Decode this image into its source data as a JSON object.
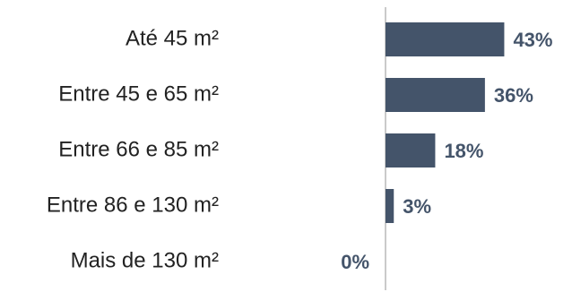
{
  "chart_data": {
    "type": "bar",
    "orientation": "horizontal",
    "categories": [
      "Até 45 m²",
      "Entre 45 e 65 m²",
      "Entre 66 e 85 m²",
      "Entre 86 e 130 m²",
      "Mais de 130 m²"
    ],
    "values": [
      43,
      36,
      18,
      3,
      0
    ],
    "data_labels": [
      "43%",
      "36%",
      "18%",
      "3%",
      "0%"
    ],
    "unit": "%",
    "title": "",
    "xlabel": "",
    "ylabel": "",
    "xlim": [
      0,
      65
    ],
    "grid": false,
    "legend": "none",
    "bar_color": "#44546a",
    "axis_color": "#a6a6a6"
  }
}
